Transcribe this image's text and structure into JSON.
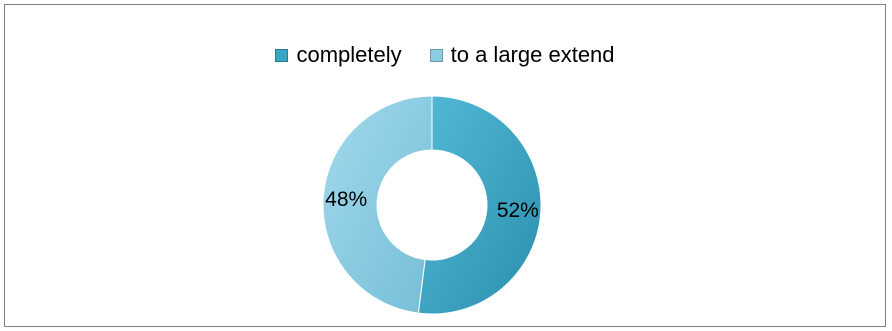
{
  "chart_data": {
    "type": "pie",
    "donut": true,
    "categories": [
      "completely",
      "to a large extend"
    ],
    "values": [
      52,
      48
    ],
    "labels": [
      "52%",
      "48%"
    ],
    "colors": [
      "#3aa6c4",
      "#8ccde3"
    ],
    "legend_position": "top",
    "title": ""
  }
}
